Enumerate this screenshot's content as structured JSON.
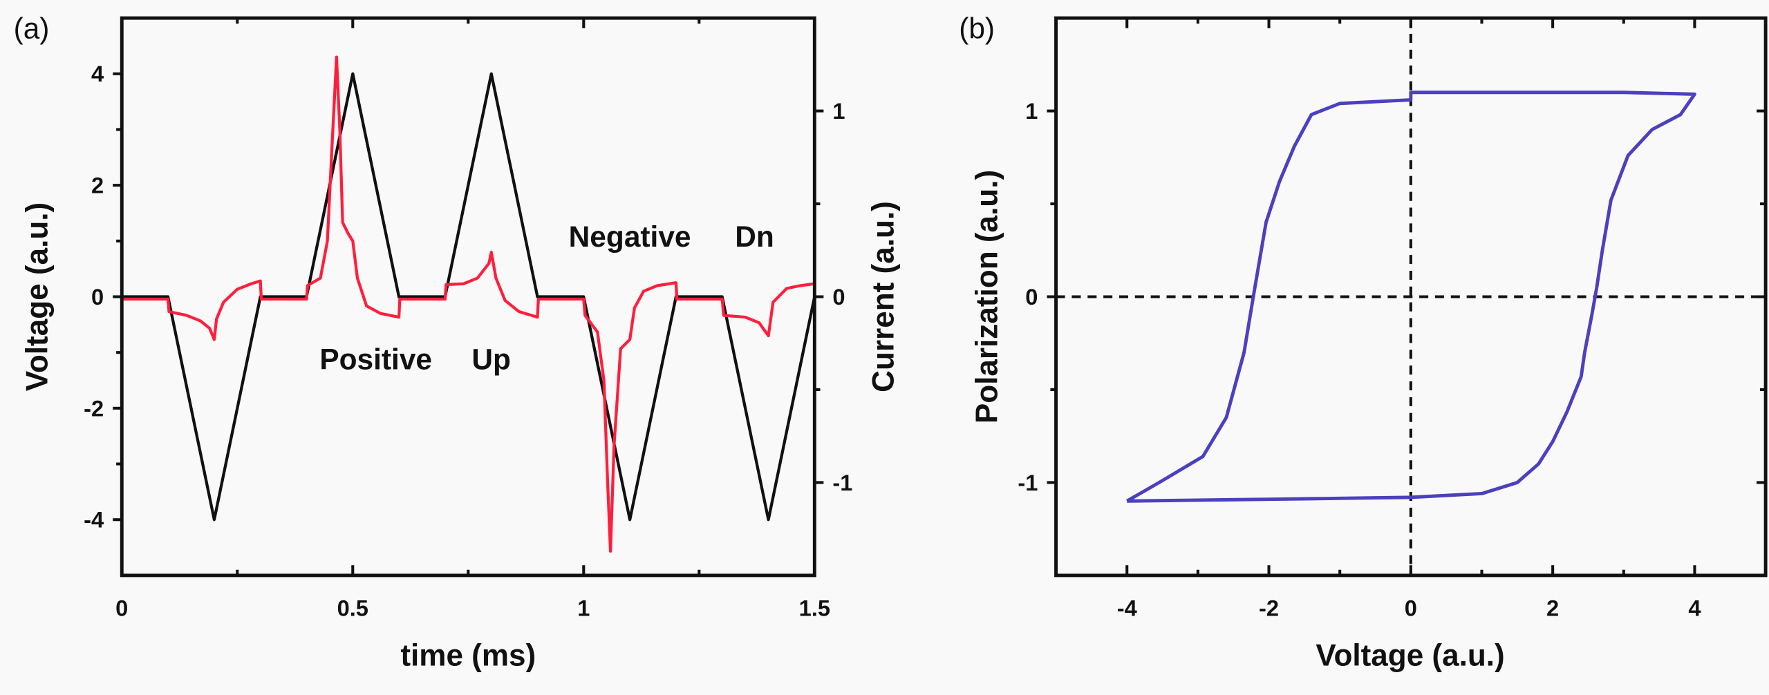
{
  "chart_data": [
    {
      "panel_label": "(a)",
      "type": "line",
      "xlabel": "time (ms)",
      "ylabel": "Voltage (a.u.)",
      "y2label": "Current (a.u.)",
      "xlim": [
        0,
        1.5
      ],
      "ylim": [
        -5,
        5
      ],
      "y2lim": [
        -1.5,
        1.5
      ],
      "xticks": [
        0,
        0.5,
        1,
        1.5
      ],
      "xtick_labels": [
        "0",
        "0.5",
        "1",
        "1.5"
      ],
      "yticks": [
        -4,
        -2,
        0,
        2,
        4
      ],
      "ytick_labels": [
        "-4",
        "-2",
        "0",
        "2",
        "4"
      ],
      "y2ticks": [
        -1,
        0,
        1
      ],
      "y2tick_labels": [
        "-1",
        "0",
        "1"
      ],
      "grid": false,
      "annotations": [
        {
          "text": "Positive",
          "x": 0.55,
          "y": -1.3
        },
        {
          "text": "Up",
          "x": 0.8,
          "y": -1.3
        },
        {
          "text": "Negative",
          "x": 1.1,
          "y": 0.9
        },
        {
          "text": "Dn",
          "x": 1.37,
          "y": 0.9
        }
      ],
      "series": [
        {
          "axis": "left",
          "color": "#111111",
          "x": [
            0,
            0.1,
            0.2,
            0.3,
            0.4,
            0.5,
            0.6,
            0.7,
            0.8,
            0.9,
            1.0,
            1.1,
            1.2,
            1.3,
            1.4,
            1.5
          ],
          "y": [
            0,
            0,
            -4,
            0,
            0,
            4,
            0,
            0,
            4,
            0,
            0,
            -4,
            0,
            0,
            -4,
            0
          ]
        },
        {
          "axis": "right",
          "color": "#ff1f3d",
          "x": [
            0,
            0.1,
            0.102,
            0.14,
            0.17,
            0.19,
            0.2,
            0.205,
            0.22,
            0.25,
            0.28,
            0.3,
            0.302,
            0.4,
            0.402,
            0.43,
            0.445,
            0.455,
            0.465,
            0.472,
            0.478,
            0.49,
            0.5,
            0.51,
            0.53,
            0.56,
            0.6,
            0.602,
            0.7,
            0.702,
            0.74,
            0.77,
            0.795,
            0.8,
            0.81,
            0.83,
            0.86,
            0.9,
            0.902,
            1.0,
            1.003,
            1.03,
            1.044,
            1.052,
            1.058,
            1.066,
            1.08,
            1.1,
            1.11,
            1.13,
            1.16,
            1.2,
            1.202,
            1.3,
            1.303,
            1.35,
            1.38,
            1.4,
            1.41,
            1.44,
            1.47,
            1.5
          ],
          "y": [
            -0.013,
            -0.013,
            -0.08,
            -0.1,
            -0.13,
            -0.17,
            -0.23,
            -0.12,
            -0.03,
            0.04,
            0.07,
            0.085,
            -0.013,
            -0.013,
            0.06,
            0.1,
            0.3,
            0.8,
            1.29,
            0.9,
            0.4,
            0.34,
            0.3,
            0.1,
            -0.05,
            -0.09,
            -0.11,
            -0.013,
            -0.013,
            0.065,
            0.07,
            0.1,
            0.18,
            0.24,
            0.1,
            -0.02,
            -0.08,
            -0.11,
            -0.013,
            -0.013,
            -0.1,
            -0.19,
            -0.45,
            -1.0,
            -1.37,
            -0.8,
            -0.28,
            -0.23,
            -0.06,
            0.03,
            0.06,
            0.075,
            -0.013,
            -0.013,
            -0.1,
            -0.11,
            -0.14,
            -0.21,
            -0.03,
            0.045,
            0.06,
            0.07
          ]
        }
      ]
    },
    {
      "panel_label": "(b)",
      "type": "line",
      "xlabel": "Voltage (a.u.)",
      "ylabel": "Polarization (a.u.)",
      "xlim": [
        -5,
        5
      ],
      "ylim": [
        -1.5,
        1.5
      ],
      "xticks": [
        -4,
        -2,
        0,
        2,
        4
      ],
      "xtick_labels": [
        "-4",
        "-2",
        "0",
        "2",
        "4"
      ],
      "yticks": [
        -1,
        0,
        1
      ],
      "ytick_labels": [
        "-1",
        "0",
        "1"
      ],
      "grid": false,
      "reference_lines": {
        "x": 0,
        "y": 0,
        "style": "dashed"
      },
      "series": [
        {
          "color": "#4b40c0",
          "x": [
            -4,
            -3,
            -2,
            -1,
            0,
            1,
            1.5,
            1.8,
            2.0,
            2.2,
            2.4,
            2.45,
            2.55,
            2.62,
            2.7,
            2.82,
            3.06,
            3.4,
            3.8,
            4,
            3,
            2,
            1,
            0,
            0,
            -1,
            -1.4,
            -1.64,
            -1.85,
            -2.04,
            -2.22,
            -2.35,
            -2.6,
            -2.93,
            -3.5,
            -4
          ],
          "y": [
            -1.1,
            -1.095,
            -1.09,
            -1.085,
            -1.08,
            -1.06,
            -1.0,
            -0.9,
            -0.78,
            -0.62,
            -0.43,
            -0.3,
            -0.1,
            0.05,
            0.25,
            0.52,
            0.76,
            0.9,
            0.98,
            1.09,
            1.1,
            1.1,
            1.1,
            1.1,
            1.06,
            1.04,
            0.98,
            0.81,
            0.62,
            0.4,
            0,
            -0.3,
            -0.65,
            -0.86,
            -0.99,
            -1.1
          ]
        }
      ]
    }
  ]
}
